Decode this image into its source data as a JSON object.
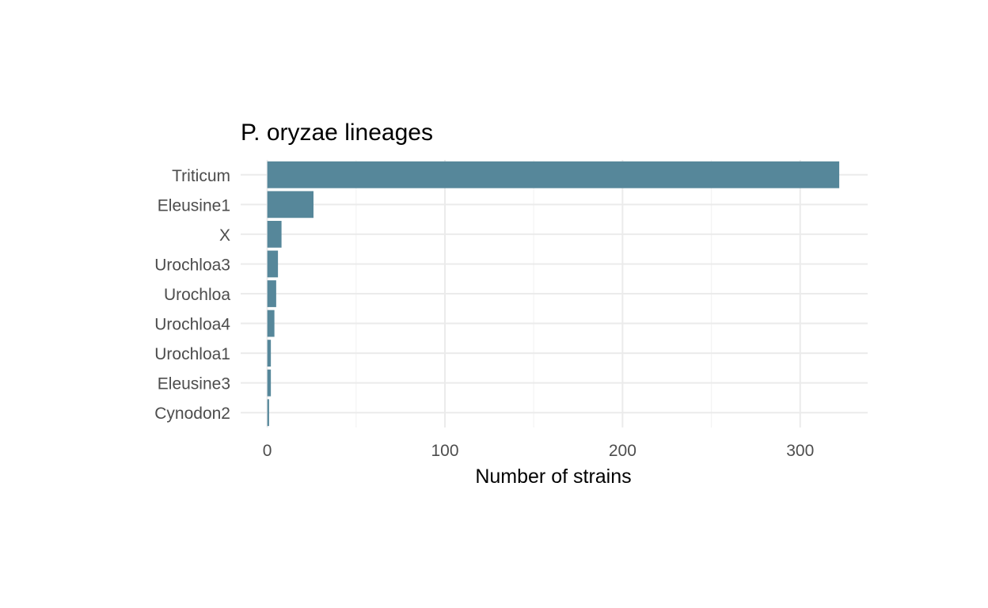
{
  "chart_data": {
    "type": "bar",
    "orientation": "horizontal",
    "title": "P. oryzae lineages",
    "xlabel": "Number of strains",
    "ylabel": "",
    "categories": [
      "Triticum",
      "Eleusine1",
      "X",
      "Urochloa3",
      "Urochloa",
      "Urochloa4",
      "Urochloa1",
      "Eleusine3",
      "Cynodon2"
    ],
    "values": [
      322,
      26,
      8,
      6,
      5,
      4,
      2,
      2,
      1
    ],
    "xlim": [
      -15,
      338
    ],
    "xticks": [
      0,
      100,
      200,
      300
    ],
    "grid": true,
    "legend": "none",
    "bar_color": "#56879A"
  }
}
